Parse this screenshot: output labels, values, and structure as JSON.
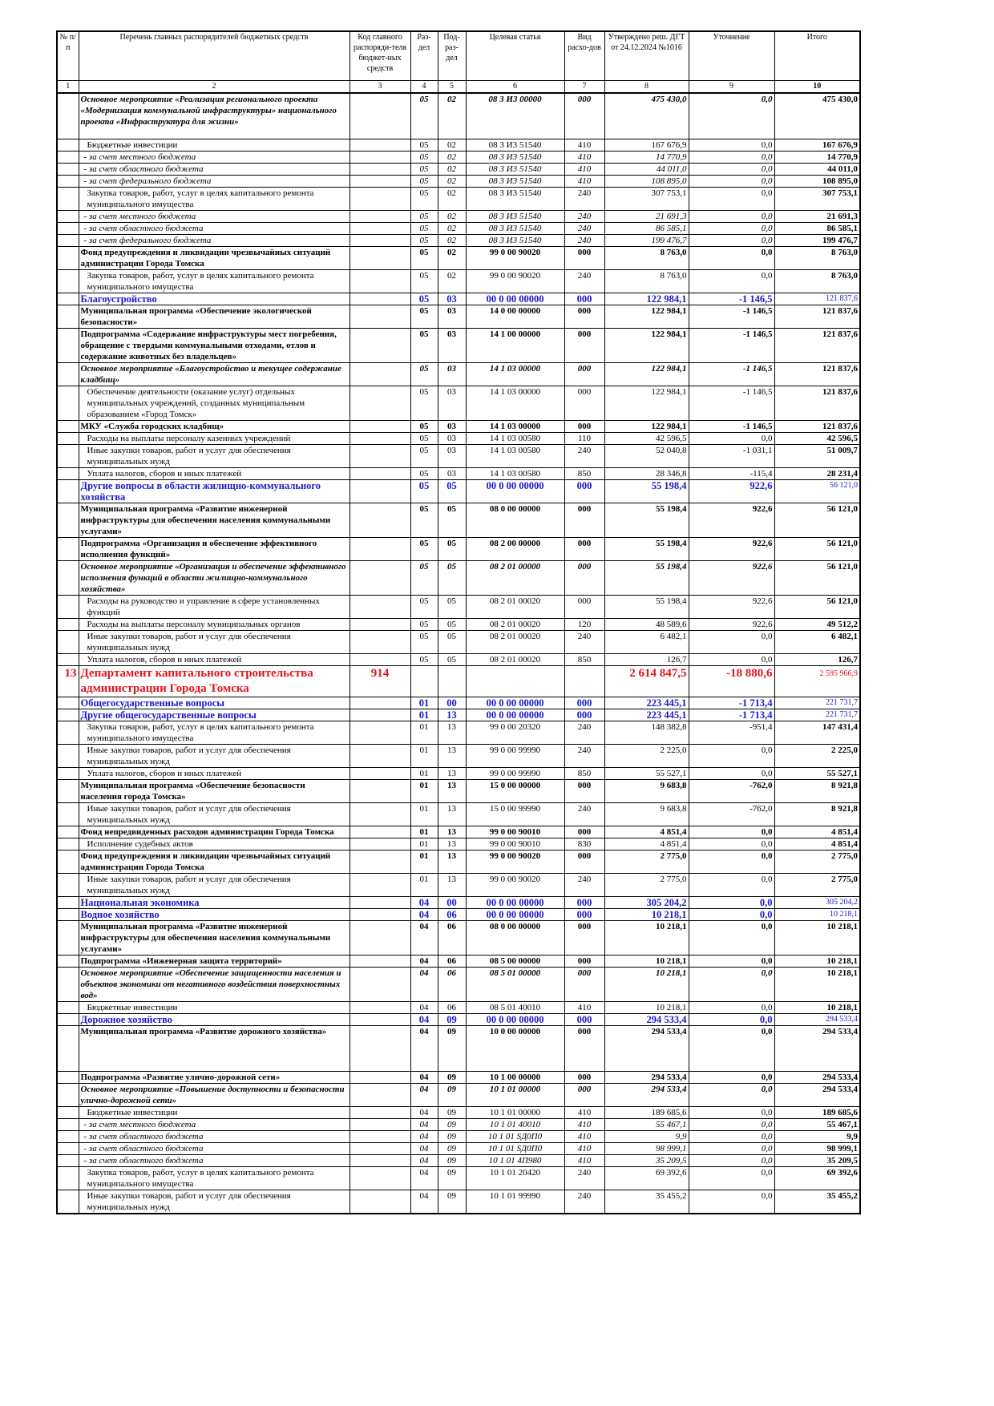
{
  "table": {
    "header": [
      "№ п/п",
      "Перечень главных распорядителей бюджетных средств",
      "Код главного распоряди-теля бюджет-ных средств",
      "Раз-дел",
      "Под-раз-дел",
      "Целевая статья",
      "Вид расхо-дов",
      "Утверждено реш. ДГТ от 24.12.2024 №1016",
      "Уточнение",
      "Итого"
    ],
    "numbers": [
      "1",
      "2",
      "3",
      "4",
      "5",
      "6",
      "7",
      "8",
      "9",
      "10"
    ],
    "rows": [
      [
        null,
        "Основное мероприятие «Реализация регионального проекта «Модернизация коммунальной инфраструктуры» национального проекта «Инфраструктура для жизни»",
        null,
        "05",
        "02",
        "08 3 И3 00000",
        "000",
        "475 430,0",
        "0,0",
        "475 430,0"
      ],
      [
        null,
        "Бюджетные инвестиции",
        null,
        "05",
        "02",
        "08 3 И3 51540",
        "410",
        "167 676,9",
        "0,0",
        "167 676,9"
      ],
      [
        null,
        "- за счет местного бюджета",
        null,
        "05",
        "02",
        "08 3 И3 51540",
        "410",
        "14 770,9",
        "0,0",
        "14 770,9"
      ],
      [
        null,
        "- за счет областного бюджета",
        null,
        "05",
        "02",
        "08 3 И3 51540",
        "410",
        "44 011,0",
        "0,0",
        "44 011,0"
      ],
      [
        null,
        "- за счет федерального бюджета",
        null,
        "05",
        "02",
        "08 3 И3 51540",
        "410",
        "108 895,0",
        "0,0",
        "108 895,0"
      ],
      [
        null,
        "Закупка товаров, работ, услуг в целях капитального ремонта муниципального имущества",
        null,
        "05",
        "02",
        "08 3 И3 51540",
        "240",
        "307 753,1",
        "0,0",
        "307 753,1"
      ],
      [
        null,
        "- за счет местного бюджета",
        null,
        "05",
        "02",
        "08 3 И3 51540",
        "240",
        "21 691,3",
        "0,0",
        "21 691,3"
      ],
      [
        null,
        "- за счет областного бюджета",
        null,
        "05",
        "02",
        "08 3 И3 51540",
        "240",
        "86 585,1",
        "0,0",
        "86 585,1"
      ],
      [
        null,
        "- за счет федерального бюджета",
        null,
        "05",
        "02",
        "08 3 И3 51540",
        "240",
        "199 476,7",
        "0,0",
        "199 476,7"
      ],
      [
        null,
        "Фонд предупреждения и ликвидации чрезвычайных ситуаций администрации Города Томска",
        null,
        "05",
        "02",
        "99 0 00 90020",
        "000",
        "8 763,0",
        "0,0",
        "8 763,0"
      ],
      [
        null,
        "Закупка товаров, работ, услуг в целях капитального ремонта муниципального имущества",
        null,
        "05",
        "02",
        "99 0 00 90020",
        "240",
        "8 763,0",
        "0,0",
        "8 763,0"
      ],
      [
        null,
        "Благоустройство",
        null,
        "05",
        "03",
        "00 0 00 00000",
        "000",
        "122 984,1",
        "-1 146,5",
        "121 837,6"
      ],
      [
        null,
        "Муниципальная программа «Обеспечение экологической безопасности»",
        null,
        "05",
        "03",
        "14 0 00 00000",
        "000",
        "122 984,1",
        "-1 146,5",
        "121 837,6"
      ],
      [
        null,
        "Подпрограмма «Содержание инфраструктуры мест погребения, обращение с твердыми коммунальными отходами, отлов и содержание животных без владельцев»",
        null,
        "05",
        "03",
        "14 1 00 00000",
        "000",
        "122 984,1",
        "-1 146,5",
        "121 837,6"
      ],
      [
        null,
        "Основное мероприятие «Благоустройство и текущее содержание кладбищ»",
        null,
        "05",
        "03",
        "14 1 03 00000",
        "000",
        "122 984,1",
        "-1 146,5",
        "121 837,6"
      ],
      [
        null,
        "Обеспечение деятельности (оказание услуг) отдельных муниципальных учреждений, созданных муниципальным образованием «Город Томск»",
        null,
        "05",
        "03",
        "14 1 03 00000",
        "000",
        "122 984,1",
        "-1 146,5",
        "121 837,6"
      ],
      [
        null,
        "МКУ «Служба городских кладбищ»",
        null,
        "05",
        "03",
        "14 1 03 00000",
        "000",
        "122 984,1",
        "-1 146,5",
        "121 837,6"
      ],
      [
        null,
        "Расходы на выплаты персоналу казенных учреждений",
        null,
        "05",
        "03",
        "14 1 03 00580",
        "110",
        "42 596,5",
        "0,0",
        "42 596,5"
      ],
      [
        null,
        "Иные закупки товаров, работ и услуг для обеспечения муниципальных нужд",
        null,
        "05",
        "03",
        "14 1 03 00580",
        "240",
        "52 040,8",
        "-1 031,1",
        "51 009,7"
      ],
      [
        null,
        "Уплата налогов, сборов и иных платежей",
        null,
        "05",
        "03",
        "14 1 03 00580",
        "850",
        "28 346,8",
        "-115,4",
        "28 231,4"
      ],
      [
        null,
        "Другие вопросы в области жилищно-коммунального хозяйства",
        null,
        "05",
        "05",
        "00 0 00 00000",
        "000",
        "55 198,4",
        "922,6",
        "56 121,0"
      ],
      [
        null,
        "Муниципальная программа «Развитие инженерной инфраструктуры для обеспечения населения коммунальными услугами»",
        null,
        "05",
        "05",
        "08 0 00 00000",
        "000",
        "55 198,4",
        "922,6",
        "56 121,0"
      ],
      [
        null,
        "Подпрограмма «Организация и обеспечение эффективного исполнения функций»",
        null,
        "05",
        "05",
        "08 2 00 00000",
        "000",
        "55 198,4",
        "922,6",
        "56 121,0"
      ],
      [
        null,
        "Основное мероприятие «Организация и обеспечение эффективного исполнения функций в области жилищно-коммунального хозяйства»",
        null,
        "05",
        "05",
        "08 2 01 00000",
        "000",
        "55 198,4",
        "922,6",
        "56 121,0"
      ],
      [
        null,
        "Расходы на руководство и управление в сфере установленных функций",
        null,
        "05",
        "05",
        "08 2 01 00020",
        "000",
        "55 198,4",
        "922,6",
        "56 121,0"
      ],
      [
        null,
        "Расходы на выплаты персоналу муниципальных органов",
        null,
        "05",
        "05",
        "08 2 01 00020",
        "120",
        "48 589,6",
        "922,6",
        "49 512,2"
      ],
      [
        null,
        "Иные закупки товаров, работ и услуг для обеспечения муниципальных нужд",
        null,
        "05",
        "05",
        "08 2 01 00020",
        "240",
        "6 482,1",
        "0,0",
        "6 482,1"
      ],
      [
        null,
        "Уплата налогов, сборов и иных платежей",
        null,
        "05",
        "05",
        "08 2 01 00020",
        "850",
        "126,7",
        "0,0",
        "126,7"
      ],
      [
        "13",
        "Департамент капитального строительства администрации Города Томска",
        "914",
        null,
        null,
        null,
        null,
        "2 614 847,5",
        "-18 880,6",
        "2 595 966,9"
      ],
      [
        null,
        "Общегосударственные вопросы",
        null,
        "01",
        "00",
        "00 0 00 00000",
        "000",
        "223 445,1",
        "-1 713,4",
        "221 731,7"
      ],
      [
        null,
        "Другие общегосударственные вопросы",
        null,
        "01",
        "13",
        "00 0 00 00000",
        "000",
        "223 445,1",
        "-1 713,4",
        "221 731,7"
      ],
      [
        null,
        "Закупка товаров, работ, услуг в целях капитального ремонта муниципального имущества",
        null,
        "01",
        "13",
        "99 0 00 20320",
        "240",
        "148 382,8",
        "-951,4",
        "147 431,4"
      ],
      [
        null,
        "Иные закупки товаров, работ и услуг для обеспечения муниципальных нужд",
        null,
        "01",
        "13",
        "99 0 00 99990",
        "240",
        "2 225,0",
        "0,0",
        "2 225,0"
      ],
      [
        null,
        "Уплата налогов, сборов и иных платежей",
        null,
        "01",
        "13",
        "99 0 00 99990",
        "850",
        "55 527,1",
        "0,0",
        "55 527,1"
      ],
      [
        null,
        "Муниципальная программа «Обеспечение безопасности населения города Томска»",
        null,
        "01",
        "13",
        "15 0 00 00000",
        "000",
        "9 683,8",
        "-762,0",
        "8 921,8"
      ],
      [
        null,
        "Иные закупки товаров, работ и услуг для обеспечения муниципальных нужд",
        null,
        "01",
        "13",
        "15 0 00 99990",
        "240",
        "9 683,8",
        "-762,0",
        "8 921,8"
      ],
      [
        null,
        "Фонд непредвиденных расходов администрации Города Томска",
        null,
        "01",
        "13",
        "99 0 00 90010",
        "000",
        "4 851,4",
        "0,0",
        "4 851,4"
      ],
      [
        null,
        "Исполнение судебных актов",
        null,
        "01",
        "13",
        "99 0 00 90010",
        "830",
        "4 851,4",
        "0,0",
        "4 851,4"
      ],
      [
        null,
        "Фонд предупреждения и ликвидации чрезвычайных ситуаций администрации Города Томска",
        null,
        "01",
        "13",
        "99 0 00 90020",
        "000",
        "2 775,0",
        "0,0",
        "2 775,0"
      ],
      [
        null,
        "Иные закупки товаров, работ и услуг для обеспечения муниципальных нужд",
        null,
        "01",
        "13",
        "99 0 00 90020",
        "240",
        "2 775,0",
        "0,0",
        "2 775,0"
      ],
      [
        null,
        "Национальная экономика",
        null,
        "04",
        "00",
        "00 0 00 00000",
        "000",
        "305 204,2",
        "0,0",
        "305 204,2"
      ],
      [
        null,
        "Водное хозяйство",
        null,
        "04",
        "06",
        "00 0 00 00000",
        "000",
        "10 218,1",
        "0,0",
        "10 218,1"
      ],
      [
        null,
        "Муниципальная программа «Развитие инженерной инфраструктуры для обеспечения населения коммунальными услугами»",
        null,
        "04",
        "06",
        "08 0 00 00000",
        "000",
        "10 218,1",
        "0,0",
        "10 218,1"
      ],
      [
        null,
        "Подпрограмма «Инженерная защита территорий»",
        null,
        "04",
        "06",
        "08 5 00 00000",
        "000",
        "10 218,1",
        "0,0",
        "10 218,1"
      ],
      [
        null,
        "Основное мероприятие «Обеспечение защищенности населения и объектов экономики от негативного воздействия поверхностных вод»",
        null,
        "04",
        "06",
        "08 5 01 00000",
        "000",
        "10 218,1",
        "0,0",
        "10 218,1"
      ],
      [
        null,
        "Бюджетные инвестиции",
        null,
        "04",
        "06",
        "08 5 01 40010",
        "410",
        "10 218,1",
        "0,0",
        "10 218,1"
      ],
      [
        null,
        "Дорожное хозяйство",
        null,
        "04",
        "09",
        "00 0 00 00000",
        "000",
        "294 533,4",
        "0,0",
        "294 533,4"
      ],
      [
        null,
        "Муниципальная программа «Развитие дорожного хозяйства»",
        null,
        "04",
        "09",
        "10 0 00 00000",
        "000",
        "294 533,4",
        "0,0",
        "294 533,4"
      ],
      [
        null,
        "Подпрограмма «Развитие улично-дорожной сети»",
        null,
        "04",
        "09",
        "10 1 00 00000",
        "000",
        "294 533,4",
        "0,0",
        "294 533,4"
      ],
      [
        null,
        "Основное мероприятие «Повышение доступности и безопасности улично-дорожной сети»",
        null,
        "04",
        "09",
        "10 1 01 00000",
        "000",
        "294 533,4",
        "0,0",
        "294 533,4"
      ],
      [
        null,
        "Бюджетные инвестиции",
        null,
        "04",
        "09",
        "10 1 01 00000",
        "410",
        "189 685,6",
        "0,0",
        "189 685,6"
      ],
      [
        null,
        "- за счет местного бюджета",
        null,
        "04",
        "09",
        "10 1 01 40010",
        "410",
        "55 467,1",
        "0,0",
        "55 467,1"
      ],
      [
        null,
        "- за счет областного бюджета",
        null,
        "04",
        "09",
        "10 1 01 SД0П0",
        "410",
        "9,9",
        "0,0",
        "9,9"
      ],
      [
        null,
        "- за счет областного бюджета",
        null,
        "04",
        "09",
        "10 1 01 SД0П0",
        "410",
        "98 999,1",
        "0,0",
        "98 999,1"
      ],
      [
        null,
        "- за счет областного бюджета",
        null,
        "04",
        "09",
        "10 1 01 4П980",
        "410",
        "35 209,5",
        "0,0",
        "35 209,5"
      ],
      [
        null,
        "Закупка товаров, работ, услуг в целях капитального ремонта муниципального имущества",
        null,
        "04",
        "09",
        "10 1 01 20420",
        "240",
        "69 392,6",
        "0,0",
        "69 392,6"
      ],
      [
        null,
        "Иные закупки товаров, работ и услуг для обеспечения муниципальных нужд",
        null,
        "04",
        "09",
        "10 1 01 99990",
        "240",
        "35 455,2",
        "0,0",
        "35 455,2"
      ]
    ]
  }
}
